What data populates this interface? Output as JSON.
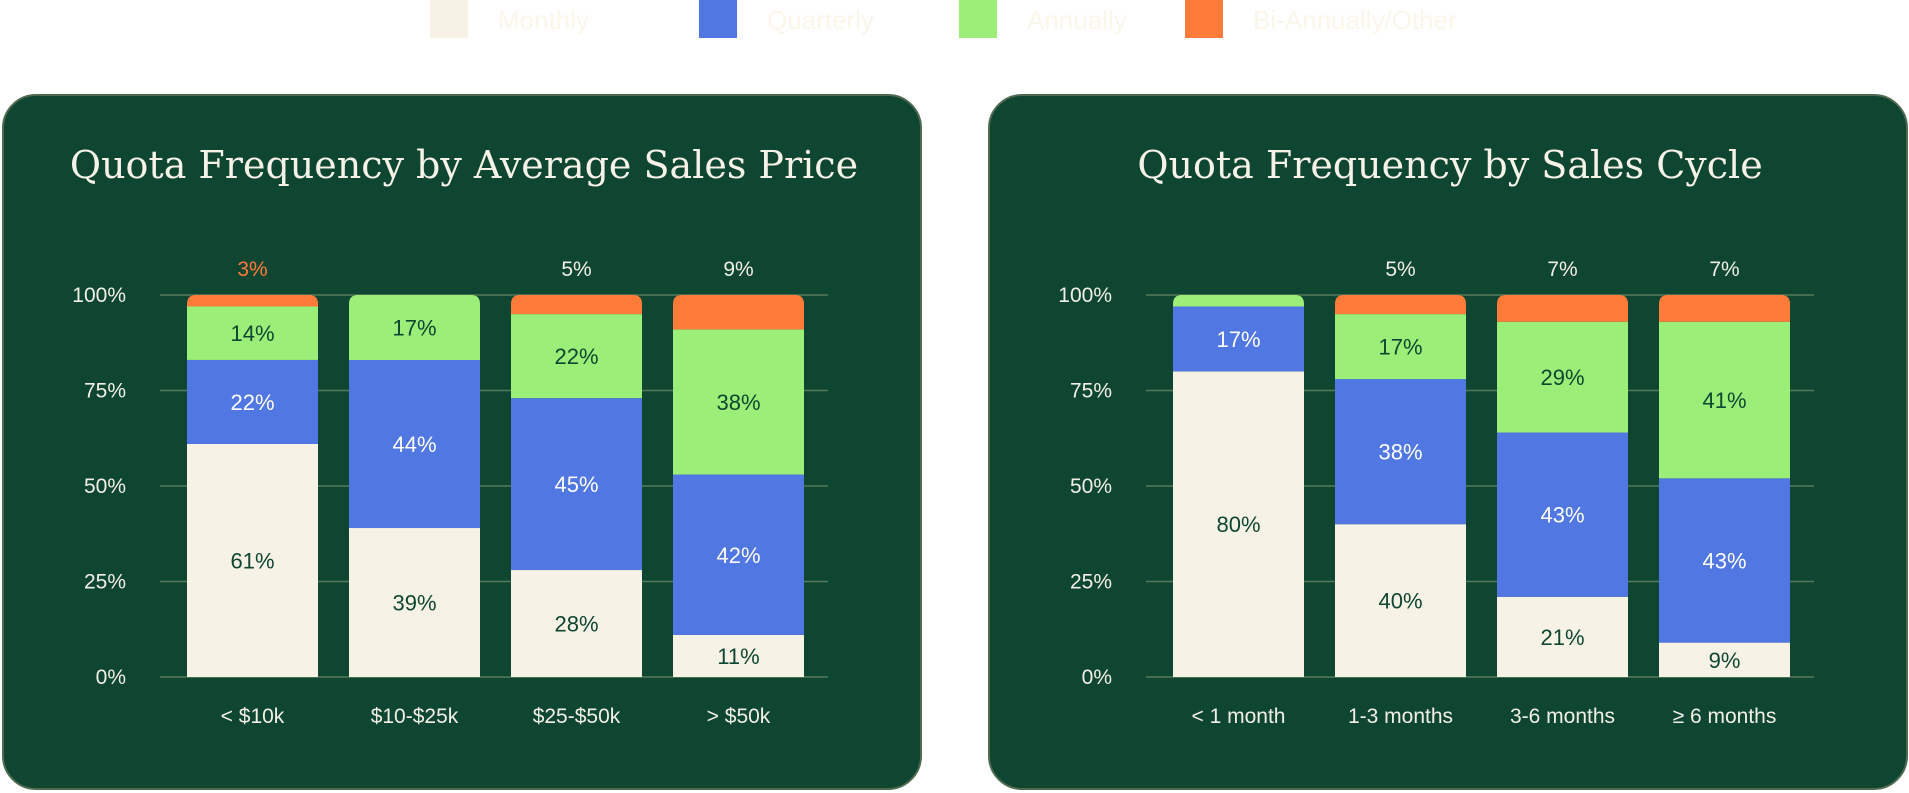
{
  "legend": [
    {
      "label": "Monthly",
      "color": "#f6f2e6"
    },
    {
      "label": "Quarterly",
      "color": "#5077e2"
    },
    {
      "label": "Annually",
      "color": "#9bee78"
    },
    {
      "label": "Bi-Annually/Other",
      "color": "#ff7b3a"
    }
  ],
  "chart_data": [
    {
      "type": "bar",
      "stacked": true,
      "title": "Quota Frequency by Average Sales Price",
      "categories": [
        "< $10k",
        "$10-$25k",
        "$25-$50k",
        "> $50k"
      ],
      "yticks": [
        "0%",
        "25%",
        "50%",
        "75%",
        "100%"
      ],
      "ylim": [
        0,
        100
      ],
      "series": [
        {
          "name": "Monthly",
          "values": [
            61,
            39,
            28,
            11
          ]
        },
        {
          "name": "Quarterly",
          "values": [
            22,
            44,
            45,
            42
          ]
        },
        {
          "name": "Annually",
          "values": [
            14,
            17,
            22,
            38
          ]
        },
        {
          "name": "Bi-Annually/Other",
          "values": [
            3,
            0,
            5,
            9
          ]
        }
      ],
      "segment_labels": [
        [
          "61%",
          "39%",
          "28%",
          "11%"
        ],
        [
          "22%",
          "44%",
          "45%",
          "42%"
        ],
        [
          "14%",
          "17%",
          "22%",
          "38%"
        ],
        [
          "3%",
          "",
          "5%",
          "9%"
        ]
      ],
      "top_label_colors": [
        "#ff7b3a",
        "#f2efe6",
        "#f2efe6",
        "#f2efe6"
      ]
    },
    {
      "type": "bar",
      "stacked": true,
      "title": "Quota Frequency by Sales Cycle",
      "categories": [
        "< 1 month",
        "1-3 months",
        "3-6 months",
        "≥ 6 months"
      ],
      "yticks": [
        "0%",
        "25%",
        "50%",
        "75%",
        "100%"
      ],
      "ylim": [
        0,
        100
      ],
      "series": [
        {
          "name": "Monthly",
          "values": [
            80,
            40,
            21,
            9
          ]
        },
        {
          "name": "Quarterly",
          "values": [
            17,
            38,
            43,
            43
          ]
        },
        {
          "name": "Annually",
          "values": [
            3,
            17,
            29,
            41
          ]
        },
        {
          "name": "Bi-Annually/Other",
          "values": [
            0,
            5,
            7,
            7
          ]
        }
      ],
      "segment_labels": [
        [
          "80%",
          "40%",
          "21%",
          "9%"
        ],
        [
          "17%",
          "38%",
          "43%",
          "43%"
        ],
        [
          "",
          "17%",
          "29%",
          "41%"
        ],
        [
          "",
          "5%",
          "7%",
          "7%"
        ]
      ],
      "top_label_colors": [
        "#f2efe6",
        "#f2efe6",
        "#f2efe6",
        "#f2efe6"
      ]
    }
  ]
}
